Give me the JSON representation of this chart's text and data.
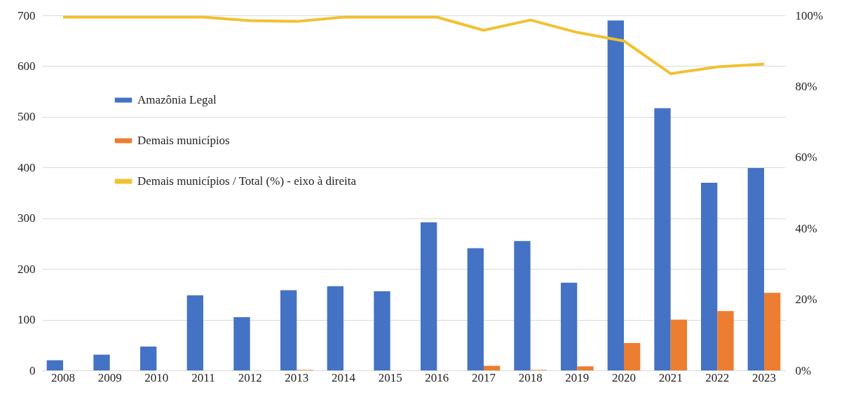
{
  "chart_data": {
    "type": "bar",
    "categories": [
      "2008",
      "2009",
      "2010",
      "2011",
      "2012",
      "2013",
      "2014",
      "2015",
      "2016",
      "2017",
      "2018",
      "2019",
      "2020",
      "2021",
      "2022",
      "2023"
    ],
    "series": [
      {
        "name": "Amazônia Legal",
        "type": "bar",
        "color": "#4472c4",
        "values": [
          20,
          31,
          47,
          148,
          105,
          158,
          166,
          156,
          292,
          241,
          255,
          173,
          690,
          517,
          370,
          399
        ]
      },
      {
        "name": "Demais municípios",
        "type": "bar",
        "color": "#ed7d31",
        "values": [
          0,
          0,
          0,
          0,
          0,
          1,
          0,
          0,
          0,
          9,
          1,
          8,
          54,
          100,
          117,
          153
        ]
      },
      {
        "name": "Demais municípios / Total (%) - eixo à direita",
        "type": "line",
        "axis": "y2",
        "color": "#f0c232",
        "values": [
          99.5,
          99.5,
          99.5,
          99.5,
          98.5,
          98.3,
          99.5,
          99.5,
          99.5,
          95.8,
          98.7,
          95.2,
          92.8,
          83.6,
          85.5,
          86.3
        ]
      }
    ],
    "ylim": [
      0,
      700
    ],
    "yticks": [
      0,
      100,
      200,
      300,
      400,
      500,
      600,
      700
    ],
    "y2lim": [
      0,
      100
    ],
    "y2ticks": [
      {
        "value": 0,
        "label": "0%"
      },
      {
        "value": 20,
        "label": "20%"
      },
      {
        "value": 40,
        "label": "40%"
      },
      {
        "value": 60,
        "label": "60%"
      },
      {
        "value": 80,
        "label": "80%"
      },
      {
        "value": 100,
        "label": "100%"
      }
    ],
    "grid": "y",
    "legend": "left",
    "marker": "none",
    "line_style": "solid"
  }
}
